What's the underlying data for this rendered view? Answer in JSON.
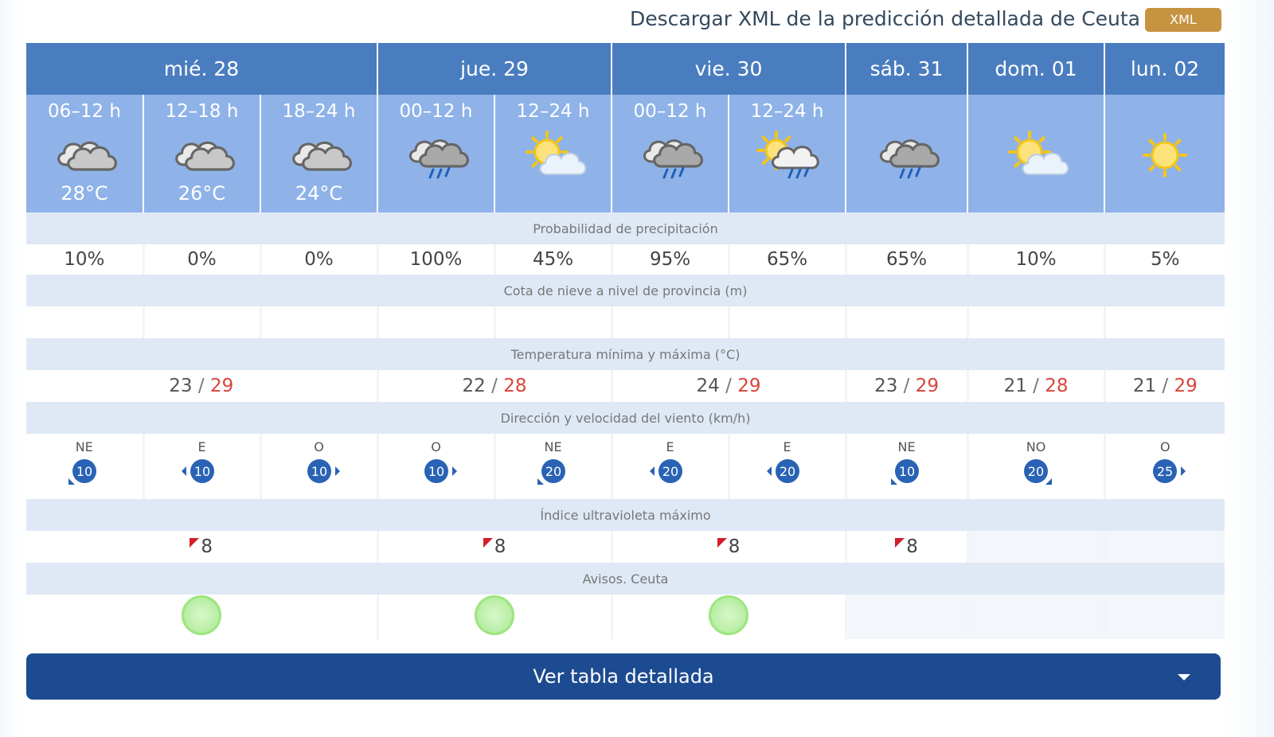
{
  "header": {
    "xml_link_text": "Descargar XML de la predicción detallada de Ceuta",
    "xml_button": "XML"
  },
  "days": [
    {
      "label": "mié. 28",
      "span": 3
    },
    {
      "label": "jue. 29",
      "span": 2
    },
    {
      "label": "vie. 30",
      "span": 2
    },
    {
      "label": "sáb. 31",
      "span": 1
    },
    {
      "label": "dom. 01",
      "span": 1
    },
    {
      "label": "lun. 02",
      "span": 1
    }
  ],
  "periods": [
    {
      "label": "06–12 h",
      "icon": "cloudy-icon",
      "temp": "28°C"
    },
    {
      "label": "12–18 h",
      "icon": "cloudy-icon",
      "temp": "26°C"
    },
    {
      "label": "18–24 h",
      "icon": "cloudy-icon",
      "temp": "24°C"
    },
    {
      "label": "00–12 h",
      "icon": "rain-cloud-icon",
      "temp": ""
    },
    {
      "label": "12–24 h",
      "icon": "partly-sunny-icon",
      "temp": ""
    },
    {
      "label": "00–12 h",
      "icon": "rain-cloud-icon",
      "temp": ""
    },
    {
      "label": "12–24 h",
      "icon": "sun-rain-icon",
      "temp": ""
    },
    {
      "label": "",
      "icon": "rain-cloud-icon",
      "temp": ""
    },
    {
      "label": "",
      "icon": "partly-sunny-icon",
      "temp": ""
    },
    {
      "label": "",
      "icon": "sun-icon",
      "temp": ""
    }
  ],
  "sections": {
    "precip": "Probabilidad de precipitación",
    "snow": "Cota de nieve a nivel de provincia (m)",
    "temp": "Temperatura mínima y máxima (°C)",
    "wind": "Dirección y velocidad del viento (km/h)",
    "uv": "Índice ultravioleta máximo",
    "warnings": "Avisos. Ceuta"
  },
  "precip": [
    "10%",
    "0%",
    "0%",
    "100%",
    "45%",
    "95%",
    "65%",
    "65%",
    "10%",
    "5%"
  ],
  "temps": [
    {
      "min": "23",
      "max": "29"
    },
    {
      "min": "22",
      "max": "28"
    },
    {
      "min": "24",
      "max": "29"
    },
    {
      "min": "23",
      "max": "29"
    },
    {
      "min": "21",
      "max": "28"
    },
    {
      "min": "21",
      "max": "29"
    }
  ],
  "wind": [
    {
      "dir": "NE",
      "speed": "10",
      "arrow": "sw"
    },
    {
      "dir": "E",
      "speed": "10",
      "arrow": "w"
    },
    {
      "dir": "O",
      "speed": "10",
      "arrow": "e"
    },
    {
      "dir": "O",
      "speed": "10",
      "arrow": "e"
    },
    {
      "dir": "NE",
      "speed": "20",
      "arrow": "sw"
    },
    {
      "dir": "E",
      "speed": "20",
      "arrow": "w"
    },
    {
      "dir": "E",
      "speed": "20",
      "arrow": "w"
    },
    {
      "dir": "NE",
      "speed": "10",
      "arrow": "sw"
    },
    {
      "dir": "NO",
      "speed": "20",
      "arrow": "se"
    },
    {
      "dir": "O",
      "speed": "25",
      "arrow": "e"
    }
  ],
  "uv": [
    "8",
    "8",
    "8",
    "8",
    "",
    ""
  ],
  "warnings": [
    true,
    true,
    true,
    false,
    false,
    false
  ],
  "detail_button": "Ver tabla detallada",
  "colors": {
    "header_blue": "#4a7dbf",
    "period_blue": "#8fb3e8",
    "section_bg": "#dfe9f5",
    "max_temp": "#d9443a",
    "button_blue": "#1d4b91",
    "xml_button": "#c69340",
    "warning_green": "#a5e98a"
  }
}
